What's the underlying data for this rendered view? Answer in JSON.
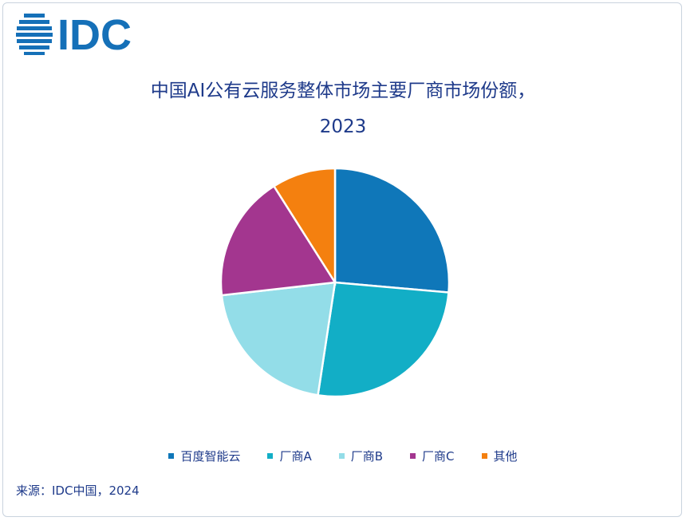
{
  "brand": {
    "logo_text": "IDC"
  },
  "chart_data": {
    "type": "pie",
    "title_line1": "中国AI公有云服务整体市场主要厂商市场份额，",
    "title_line2": "2023",
    "slices": [
      {
        "label": "百度智能云",
        "value": 26.4,
        "color": "#0f77b9"
      },
      {
        "label": "厂商A",
        "value": 26.0,
        "color": "#12aec6"
      },
      {
        "label": "厂商B",
        "value": 20.8,
        "color": "#93dde8"
      },
      {
        "label": "厂商C",
        "value": 17.8,
        "color": "#a3368f"
      },
      {
        "label": "其他",
        "value": 9.0,
        "color": "#f4800f"
      }
    ],
    "legend_position": "bottom",
    "source": "来源：IDC中国，2024"
  }
}
